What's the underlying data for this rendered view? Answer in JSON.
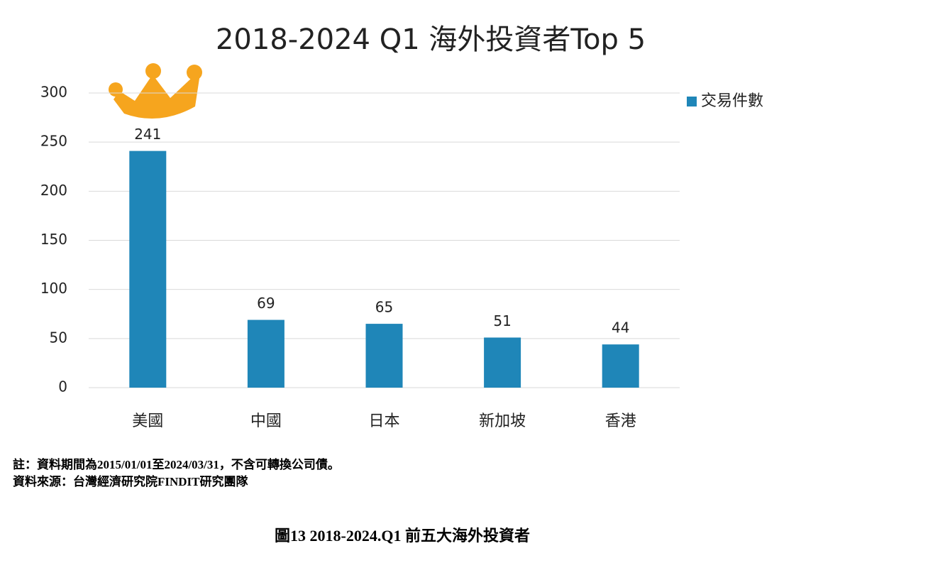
{
  "chart_data": {
    "type": "bar",
    "title": "2018-2024 Q1 海外投資者Top 5",
    "categories": [
      "美國",
      "中國",
      "日本",
      "新加坡",
      "香港"
    ],
    "series": [
      {
        "name": "交易件數",
        "color": "#1f86b8",
        "values": [
          241,
          69,
          65,
          51,
          44
        ]
      }
    ],
    "ylim": [
      0,
      300
    ],
    "yticks": [
      0,
      50,
      100,
      150,
      200,
      250,
      300
    ],
    "grid": true,
    "legend": "right",
    "notes": [
      "註：資料期間為2015/01/01至2024/03/31，不含可轉換公司債。",
      "資料來源：台灣經濟研究院FINDIT研究團隊"
    ],
    "caption": "圖13  2018-2024.Q1 前五大海外投資者"
  }
}
